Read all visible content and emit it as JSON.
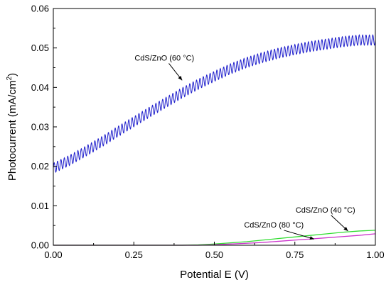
{
  "chart_data": {
    "type": "line",
    "title": "",
    "xlabel": "Potential E (V)",
    "ylabel_parts": [
      "Photocurrent (mA/cm",
      "2",
      ")"
    ],
    "xlim": [
      0,
      1.0
    ],
    "ylim": [
      0,
      0.06
    ],
    "xticks": [
      0.0,
      0.25,
      0.5,
      0.75,
      1.0
    ],
    "xtick_labels": [
      "0.00",
      "0.25",
      "0.50",
      "0.75",
      "1.00"
    ],
    "yticks": [
      0.0,
      0.01,
      0.02,
      0.03,
      0.04,
      0.05,
      0.06
    ],
    "ytick_labels": [
      "0.00",
      "0.01",
      "0.02",
      "0.03",
      "0.04",
      "0.05",
      "0.06"
    ],
    "grid": false,
    "legend": "none",
    "series": [
      {
        "color": "#1f1fcc",
        "oscillating": true,
        "oscillation_cycles": 95,
        "oscillation_amplitude": 0.0013,
        "x": [
          0.0,
          0.05,
          0.1,
          0.15,
          0.2,
          0.25,
          0.3,
          0.35,
          0.4,
          0.45,
          0.5,
          0.55,
          0.6,
          0.65,
          0.7,
          0.75,
          0.8,
          0.85,
          0.9,
          0.95,
          1.0
        ],
        "y": [
          0.0195,
          0.0215,
          0.0238,
          0.0262,
          0.0288,
          0.0313,
          0.0338,
          0.0362,
          0.0386,
          0.0408,
          0.0428,
          0.0447,
          0.0463,
          0.0476,
          0.0487,
          0.0496,
          0.0504,
          0.051,
          0.0516,
          0.052,
          0.052
        ]
      },
      {
        "color": "#33dd33",
        "oscillating": false,
        "x": [
          0.0,
          0.4,
          0.45,
          0.5,
          0.55,
          0.6,
          0.65,
          0.7,
          0.75,
          0.8,
          0.85,
          0.9,
          0.95,
          1.0
        ],
        "y": [
          0.0,
          0.0,
          8e-05,
          0.0003,
          0.0006,
          0.0009,
          0.0013,
          0.0017,
          0.0021,
          0.0025,
          0.0029,
          0.0033,
          0.0036,
          0.0038
        ]
      },
      {
        "color": "#cc33cc",
        "oscillating": false,
        "x": [
          0.0,
          0.45,
          0.5,
          0.55,
          0.6,
          0.65,
          0.7,
          0.75,
          0.8,
          0.85,
          0.9,
          0.95,
          1.0
        ],
        "y": [
          0.0,
          0.0,
          0.0001,
          0.0003,
          0.0005,
          0.0007,
          0.001,
          0.0013,
          0.0016,
          0.0019,
          0.0022,
          0.0025,
          0.0029
        ]
      }
    ],
    "annotations": [
      {
        "text": "CdS/ZnO  (60 °C)",
        "series": 0,
        "arrow_to": [
          0.4,
          0.0418
        ],
        "label_at": [
          0.345,
          0.0468
        ]
      },
      {
        "text": "CdS/ZnO  (40 °C)",
        "series": 1,
        "arrow_to": [
          0.915,
          0.0036
        ],
        "label_at": [
          0.845,
          0.0083
        ]
      },
      {
        "text": "CdS/ZnO  (80 °C)",
        "series": 2,
        "arrow_to": [
          0.81,
          0.00155
        ],
        "label_at": [
          0.685,
          0.0045
        ]
      }
    ]
  }
}
